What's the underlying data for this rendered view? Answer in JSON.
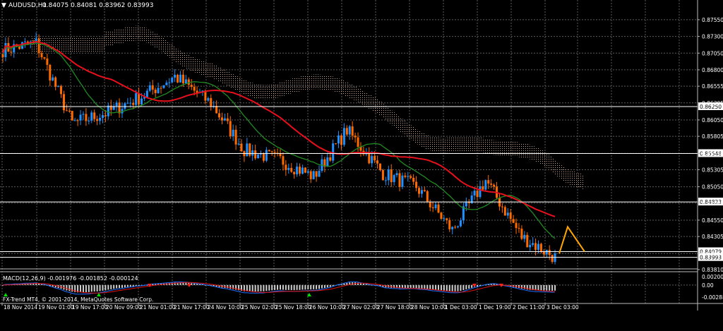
{
  "header": {
    "symbol": "AUDUSD,H1",
    "ohlc": "0.84075 0.84081 0.83962 0.83993"
  },
  "macd": {
    "label": "MACD(12,26,9) -0.001976 -0.001852 -0.000124"
  },
  "watermark": "FX-Trend MT4, © 2001-2014, MetaQuotes Software Corp.",
  "colors": {
    "background": "#000000",
    "grid": "#5a5a5a",
    "bull": "#1e90ff",
    "bear": "#ff6a00",
    "ma_red": "#e8101c",
    "ma_green": "#228b22",
    "cloud": "#c8a890",
    "pattern": "#ffa500",
    "macd_hist": "#d0d0d0",
    "macd_line": "#1e6fff",
    "signal_line": "#e01010",
    "arrow_green": "#00e000",
    "arrow_red": "#ff2020",
    "hline": "#ffffff",
    "text": "#ffffff"
  },
  "chart_data": [
    {
      "type": "candlestick",
      "title": "AUDUSD,H1",
      "ylim": [
        0.8381,
        0.8775
      ],
      "y_ticks": [
        "0.87550",
        "0.87300",
        "0.87050",
        "0.86800",
        "0.86555",
        "0.86305",
        "0.86050",
        "0.85805",
        "0.85550",
        "0.85305",
        "0.85050",
        "0.84805",
        "0.84550",
        "0.84305",
        "0.84050",
        "0.83810"
      ],
      "y_tick_values": [
        0.8755,
        0.873,
        0.8705,
        0.868,
        0.86555,
        0.86305,
        0.8605,
        0.85805,
        0.8555,
        0.85305,
        0.8505,
        0.84805,
        0.8455,
        0.84305,
        0.8405,
        0.8381
      ],
      "x_ticks": [
        "18 Nov 2014",
        "19 Nov 01:00",
        "19 Nov 17:00",
        "20 Nov 09:00",
        "21 Nov 01:00",
        "21 Nov 17:00",
        "24 Nov 10:00",
        "25 Nov 02:00",
        "25 Nov 18:00",
        "26 Nov 10:00",
        "27 Nov 02:00",
        "27 Nov 18:00",
        "28 Nov 10:00",
        "1 Dec 03:00",
        "1 Dec 19:00",
        "2 Dec 11:00",
        "3 Dec 03:00"
      ],
      "price_levels": [
        {
          "value": 0.8625,
          "label": "0.86250"
        },
        {
          "value": 0.85548,
          "label": "0.85548"
        },
        {
          "value": 0.84823,
          "label": "0.84823"
        },
        {
          "value": 0.84079,
          "label": "0.84079"
        },
        {
          "value": 0.83993,
          "label": "0.83993"
        }
      ],
      "key_points": [
        {
          "x": "18 Nov 2014",
          "close": 0.871
        },
        {
          "x": "19 Nov 01:00",
          "close": 0.872
        },
        {
          "x": "19 Nov 17:00",
          "close": 0.86
        },
        {
          "x": "20 Nov 09:00",
          "close": 0.8615
        },
        {
          "x": "21 Nov 01:00",
          "close": 0.864
        },
        {
          "x": "21 Nov 17:00",
          "close": 0.867
        },
        {
          "x": "24 Nov 10:00",
          "close": 0.863
        },
        {
          "x": "25 Nov 02:00",
          "close": 0.856
        },
        {
          "x": "25 Nov 18:00",
          "close": 0.8545
        },
        {
          "x": "26 Nov 10:00",
          "close": 0.852
        },
        {
          "x": "27 Nov 02:00",
          "close": 0.859
        },
        {
          "x": "27 Nov 18:00",
          "close": 0.8525
        },
        {
          "x": "28 Nov 10:00",
          "close": 0.8505
        },
        {
          "x": "1 Dec 03:00",
          "close": 0.844
        },
        {
          "x": "1 Dec 19:00",
          "close": 0.8515
        },
        {
          "x": "2 Dec 11:00",
          "close": 0.843
        },
        {
          "x": "3 Dec 03:00",
          "close": 0.83993
        }
      ]
    },
    {
      "type": "histogram",
      "title": "MACD(12,26,9) -0.001976 -0.001852 -0.000124",
      "ylim": [
        -0.00289,
        0.002
      ],
      "y_ticks": [
        "0.002001",
        "0.00",
        "-0.002889"
      ],
      "y_tick_values": [
        0.002001,
        0.0,
        -0.002889
      ]
    }
  ]
}
